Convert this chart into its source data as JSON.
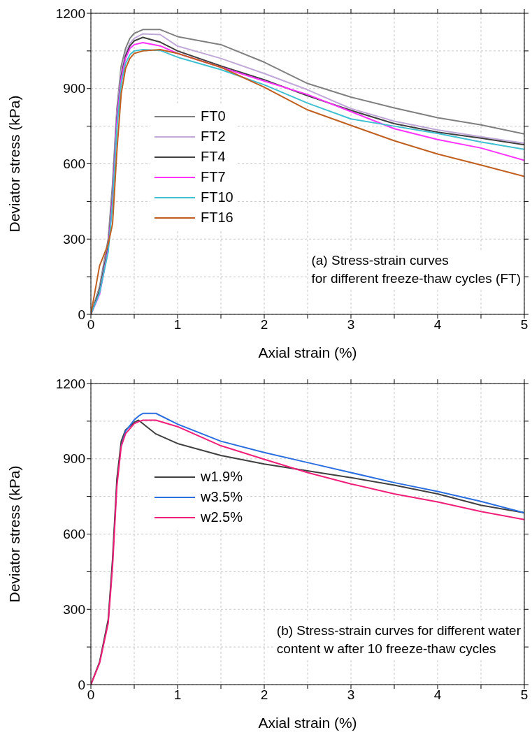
{
  "chart_data": [
    {
      "type": "line",
      "xlabel": "Axial strain (%)",
      "ylabel": "Deviator stress (kPa)",
      "annotations": [
        "(a) Stress-strain curves\nfor different freeze-thaw cycles (FT)"
      ],
      "xlim": [
        0,
        5
      ],
      "ylim": [
        0,
        1200
      ],
      "xticks": [
        0,
        {
          "value": 0.5,
          "label": null
        },
        1,
        {
          "value": 1.5,
          "label": null
        },
        2,
        {
          "value": 2.5,
          "label": null
        },
        3,
        {
          "value": 3.5,
          "label": null
        },
        4,
        {
          "value": 4.5,
          "label": null
        },
        5
      ],
      "yticks": [
        0,
        {
          "value": 150,
          "label": null
        },
        300,
        {
          "value": 450,
          "label": null
        },
        600,
        {
          "value": 750,
          "label": null
        },
        900,
        {
          "value": 1050,
          "label": null
        },
        1200
      ],
      "grid": true,
      "legend": "left",
      "line_style": "solid",
      "marker": "none",
      "x": [
        0,
        0.1,
        0.2,
        0.25,
        0.3,
        0.35,
        0.4,
        0.45,
        0.5,
        0.6,
        0.8,
        1.0,
        1.5,
        2.0,
        2.5,
        3.0,
        3.5,
        4.0,
        4.5,
        5.0
      ],
      "series": [
        {
          "name": "FT0",
          "color": "#808080",
          "values": [
            0,
            110,
            300,
            520,
            820,
            990,
            1060,
            1100,
            1120,
            1135,
            1135,
            1107,
            1075,
            1005,
            920,
            866,
            823,
            784,
            755,
            719
          ]
        },
        {
          "name": "FT2",
          "color": "#c0a8d8",
          "values": [
            0,
            100,
            280,
            480,
            800,
            970,
            1040,
            1080,
            1100,
            1118,
            1115,
            1069,
            1020,
            960,
            895,
            820,
            770,
            735,
            708,
            682
          ]
        },
        {
          "name": "FT4",
          "color": "#404040",
          "values": [
            0,
            95,
            270,
            470,
            780,
            950,
            1030,
            1070,
            1090,
            1104,
            1085,
            1050,
            990,
            935,
            871,
            813,
            760,
            726,
            702,
            676
          ]
        },
        {
          "name": "FT7",
          "color": "#ff33ff",
          "values": [
            0,
            80,
            260,
            460,
            770,
            940,
            1020,
            1060,
            1075,
            1083,
            1070,
            1040,
            985,
            930,
            876,
            808,
            740,
            697,
            663,
            614
          ]
        },
        {
          "name": "FT10",
          "color": "#40c0d0",
          "values": [
            0,
            85,
            250,
            440,
            740,
            920,
            1000,
            1035,
            1050,
            1055,
            1052,
            1025,
            975,
            915,
            842,
            779,
            750,
            721,
            687,
            658
          ]
        },
        {
          "name": "FT16",
          "color": "#c06020",
          "values": [
            0,
            193,
            280,
            361,
            650,
            880,
            980,
            1020,
            1040,
            1050,
            1055,
            1040,
            985,
            905,
            815,
            753,
            692,
            639,
            595,
            550
          ]
        }
      ]
    },
    {
      "type": "line",
      "xlabel": "Axial strain (%)",
      "ylabel": "Deviator stress (kPa)",
      "annotations": [
        "(b) Stress-strain curves for different water\ncontent w after 10 freeze-thaw cycles"
      ],
      "xlim": [
        0,
        5
      ],
      "ylim": [
        0,
        1200
      ],
      "xticks": [
        0,
        {
          "value": 0.5,
          "label": null
        },
        1,
        {
          "value": 1.5,
          "label": null
        },
        2,
        {
          "value": 2.5,
          "label": null
        },
        3,
        {
          "value": 3.5,
          "label": null
        },
        4,
        {
          "value": 4.5,
          "label": null
        },
        5
      ],
      "yticks": [
        0,
        {
          "value": 150,
          "label": null
        },
        300,
        {
          "value": 450,
          "label": null
        },
        600,
        {
          "value": 750,
          "label": null
        },
        900,
        {
          "value": 1050,
          "label": null
        },
        1200
      ],
      "grid": true,
      "legend": "left",
      "line_style": "solid",
      "marker": "none",
      "x": [
        0,
        0.1,
        0.2,
        0.25,
        0.3,
        0.35,
        0.4,
        0.5,
        0.55,
        0.6,
        0.75,
        1.0,
        1.5,
        2.0,
        2.5,
        3.0,
        3.5,
        4.0,
        4.5,
        5.0
      ],
      "series": [
        {
          "name": "w1.9%",
          "color": "#404040",
          "values": [
            0,
            90,
            260,
            500,
            820,
            970,
            1015,
            1045,
            1054,
            1040,
            999,
            961,
            913,
            879,
            852,
            825,
            795,
            760,
            715,
            685
          ]
        },
        {
          "name": "w3.5%",
          "color": "#2a6ee0",
          "values": [
            null,
            null,
            null,
            null,
            null,
            950,
            1010,
            1055,
            1070,
            1081,
            1081,
            1038,
            970,
            925,
            885,
            845,
            805,
            770,
            730,
            685
          ]
        },
        {
          "name": "w2.5%",
          "color": "#f0207a",
          "values": [
            0,
            85,
            245,
            470,
            790,
            950,
            1000,
            1040,
            1048,
            1054,
            1054,
            1028,
            952,
            898,
            845,
            800,
            760,
            728,
            690,
            658
          ]
        }
      ]
    }
  ]
}
